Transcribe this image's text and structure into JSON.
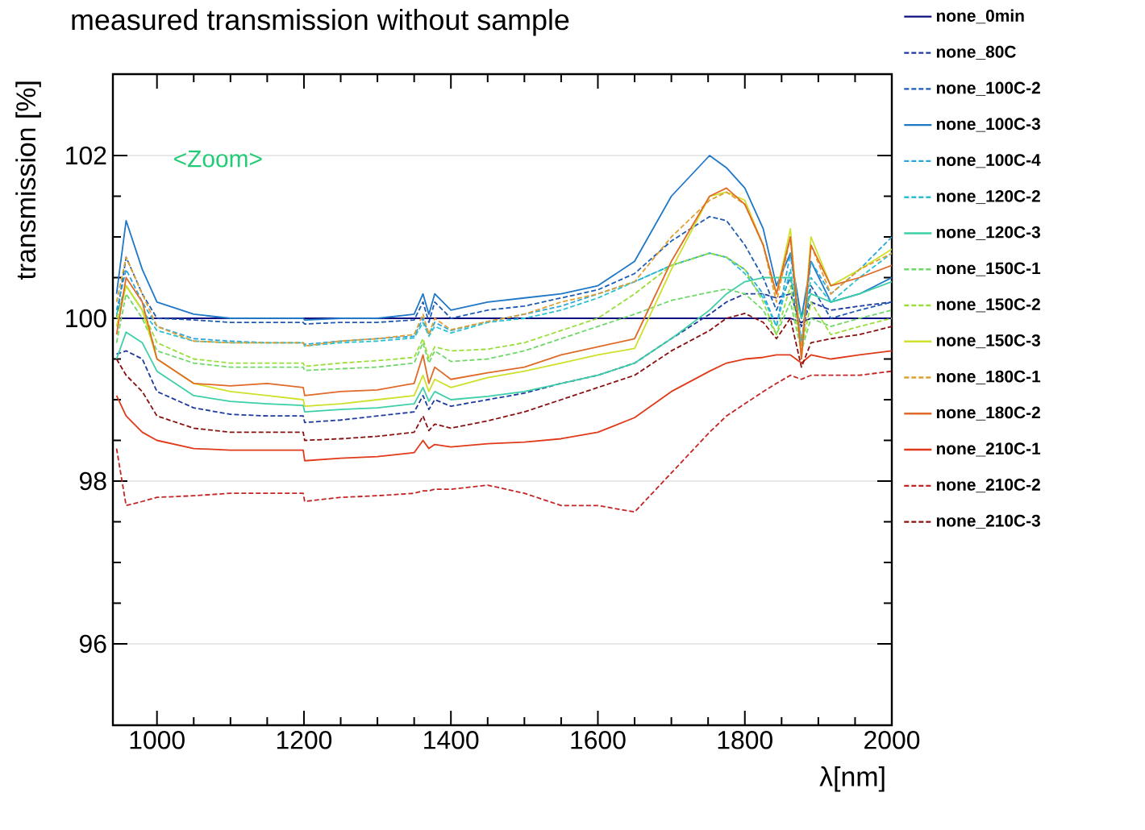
{
  "chart_data": {
    "type": "line",
    "title": "measured transmission without sample",
    "xlabel": "λ[nm]",
    "ylabel": "transmission [%]",
    "annotations": [
      "<Zoom>"
    ],
    "xlim": [
      940,
      2000
    ],
    "ylim": [
      95,
      103
    ],
    "xticks": [
      1000,
      1200,
      1400,
      1600,
      1800,
      2000
    ],
    "yticks": [
      96,
      98,
      100,
      102
    ],
    "grid": "y",
    "legend": "right",
    "marker": "none",
    "x": [
      945,
      958,
      980,
      1000,
      1050,
      1100,
      1150,
      1199,
      1201,
      1250,
      1300,
      1350,
      1362,
      1370,
      1378,
      1400,
      1450,
      1500,
      1550,
      1600,
      1650,
      1700,
      1752,
      1775,
      1800,
      1825,
      1843,
      1862,
      1877,
      1890,
      1917,
      1956,
      2000
    ],
    "series": [
      {
        "name": "none_0min",
        "color": "#0d0d80",
        "line_style": "solid",
        "values": [
          100.0,
          100.0,
          100.0,
          100.0,
          100.0,
          100.0,
          100.0,
          100.0,
          100.0,
          100.0,
          100.0,
          100.0,
          100.0,
          100.0,
          100.0,
          100.0,
          100.0,
          100.0,
          100.0,
          100.0,
          100.0,
          100.0,
          100.0,
          100.0,
          100.0,
          100.0,
          100.0,
          100.0,
          99.95,
          100.0,
          100.0,
          100.0,
          100.0
        ]
      },
      {
        "name": "none_80C",
        "color": "#1f3a9e",
        "line_style": "dashed",
        "values": [
          99.56,
          99.6,
          99.5,
          99.1,
          98.9,
          98.82,
          98.8,
          98.8,
          98.72,
          98.75,
          98.8,
          98.85,
          99.05,
          98.88,
          99.0,
          98.92,
          99.0,
          99.08,
          99.2,
          99.3,
          99.45,
          99.75,
          100.05,
          100.2,
          100.3,
          100.3,
          100.25,
          100.3,
          99.9,
          100.2,
          100.1,
          100.15,
          100.2
        ]
      },
      {
        "name": "none_100C-2",
        "color": "#1d5bb5",
        "line_style": "dashed",
        "values": [
          100.0,
          100.75,
          100.3,
          100.0,
          99.98,
          99.95,
          99.95,
          99.95,
          99.93,
          99.95,
          99.95,
          99.98,
          100.2,
          99.95,
          100.2,
          100.0,
          100.1,
          100.15,
          100.25,
          100.35,
          100.55,
          100.95,
          101.25,
          101.2,
          100.9,
          100.5,
          100.1,
          100.5,
          99.7,
          100.4,
          100.0,
          100.1,
          100.2
        ]
      },
      {
        "name": "none_100C-3",
        "color": "#1f77c8",
        "line_style": "solid",
        "values": [
          100.3,
          101.2,
          100.6,
          100.2,
          100.05,
          100.0,
          100.0,
          100.0,
          99.98,
          100.0,
          100.0,
          100.05,
          100.3,
          100.05,
          100.3,
          100.1,
          100.2,
          100.25,
          100.3,
          100.4,
          100.7,
          101.5,
          102.0,
          101.85,
          101.6,
          101.1,
          100.4,
          100.8,
          100.0,
          100.7,
          100.2,
          100.3,
          100.5
        ]
      },
      {
        "name": "none_100C-4",
        "color": "#2aa6dc",
        "line_style": "dashed",
        "values": [
          100.1,
          100.6,
          100.2,
          99.9,
          99.75,
          99.72,
          99.7,
          99.7,
          99.68,
          99.72,
          99.75,
          99.78,
          100.0,
          99.8,
          99.95,
          99.85,
          99.96,
          100.05,
          100.15,
          100.3,
          100.45,
          100.65,
          100.8,
          100.75,
          100.6,
          100.3,
          99.9,
          100.8,
          99.7,
          100.7,
          100.3,
          100.6,
          101.0
        ]
      },
      {
        "name": "none_120C-2",
        "color": "#2bc0d0",
        "line_style": "dashed",
        "values": [
          100.05,
          100.4,
          100.1,
          99.85,
          99.72,
          99.7,
          99.7,
          99.7,
          99.66,
          99.7,
          99.72,
          99.76,
          99.95,
          99.78,
          99.9,
          99.82,
          99.95,
          100.0,
          100.1,
          100.25,
          100.45,
          100.65,
          100.8,
          100.75,
          100.55,
          100.25,
          99.9,
          100.6,
          99.7,
          100.5,
          100.2,
          100.5,
          100.8
        ]
      },
      {
        "name": "none_120C-3",
        "color": "#3ccfa8",
        "line_style": "solid",
        "values": [
          99.5,
          99.83,
          99.7,
          99.35,
          99.05,
          98.98,
          98.95,
          98.93,
          98.85,
          98.88,
          98.9,
          98.95,
          99.15,
          98.98,
          99.1,
          99.0,
          99.04,
          99.1,
          99.2,
          99.3,
          99.45,
          99.75,
          100.1,
          100.3,
          100.45,
          100.5,
          100.5,
          100.5,
          100.0,
          100.3,
          100.2,
          100.3,
          100.45
        ]
      },
      {
        "name": "none_150C-1",
        "color": "#6fd86a",
        "line_style": "dashed",
        "values": [
          99.7,
          100.3,
          100.0,
          99.6,
          99.45,
          99.4,
          99.4,
          99.4,
          99.36,
          99.38,
          99.4,
          99.45,
          99.7,
          99.45,
          99.6,
          99.47,
          99.5,
          99.6,
          99.75,
          99.9,
          100.05,
          100.22,
          100.32,
          100.36,
          100.3,
          100.1,
          99.8,
          100.2,
          99.6,
          100.0,
          99.9,
          100.0,
          100.1
        ]
      },
      {
        "name": "none_150C-2",
        "color": "#9ade3a",
        "line_style": "dashed",
        "values": [
          100.0,
          100.4,
          100.1,
          99.7,
          99.5,
          99.45,
          99.45,
          99.45,
          99.41,
          99.45,
          99.48,
          99.52,
          99.75,
          99.5,
          99.65,
          99.6,
          99.62,
          99.7,
          99.85,
          100.0,
          100.3,
          100.65,
          100.8,
          100.75,
          100.6,
          100.2,
          99.8,
          100.4,
          99.6,
          100.2,
          99.8,
          99.9,
          100.0
        ]
      },
      {
        "name": "none_150C-3",
        "color": "#cfe02a",
        "line_style": "solid",
        "values": [
          99.9,
          100.4,
          100.1,
          99.5,
          99.2,
          99.1,
          99.05,
          99.0,
          98.92,
          98.95,
          99.0,
          99.05,
          99.3,
          99.1,
          99.25,
          99.15,
          99.27,
          99.35,
          99.45,
          99.55,
          99.63,
          100.6,
          101.5,
          101.55,
          101.45,
          100.9,
          100.3,
          101.1,
          99.5,
          101.0,
          100.4,
          100.6,
          100.85
        ]
      },
      {
        "name": "none_180C-1",
        "color": "#e0a030",
        "line_style": "dashed",
        "values": [
          100.2,
          100.75,
          100.3,
          99.9,
          99.72,
          99.7,
          99.7,
          99.7,
          99.66,
          99.72,
          99.75,
          99.8,
          100.05,
          99.8,
          100.0,
          99.86,
          99.96,
          100.05,
          100.2,
          100.3,
          100.45,
          101.0,
          101.45,
          101.55,
          101.4,
          100.9,
          100.2,
          101.0,
          99.6,
          100.9,
          100.3,
          100.6,
          100.8
        ]
      },
      {
        "name": "none_180C-2",
        "color": "#e06a28",
        "line_style": "solid",
        "values": [
          99.8,
          100.5,
          100.2,
          99.5,
          99.2,
          99.17,
          99.2,
          99.15,
          99.05,
          99.1,
          99.12,
          99.2,
          99.55,
          99.2,
          99.4,
          99.25,
          99.33,
          99.4,
          99.55,
          99.65,
          99.75,
          100.7,
          101.5,
          101.6,
          101.4,
          100.9,
          100.3,
          101.0,
          99.5,
          100.9,
          100.4,
          100.5,
          100.65
        ]
      },
      {
        "name": "none_210C-1",
        "color": "#e03a1a",
        "line_style": "solid",
        "values": [
          99.05,
          98.8,
          98.6,
          98.5,
          98.4,
          98.38,
          98.38,
          98.38,
          98.25,
          98.28,
          98.3,
          98.35,
          98.5,
          98.4,
          98.45,
          98.42,
          98.46,
          98.48,
          98.52,
          98.6,
          98.78,
          99.1,
          99.35,
          99.45,
          99.5,
          99.52,
          99.55,
          99.55,
          99.45,
          99.55,
          99.5,
          99.55,
          99.6
        ]
      },
      {
        "name": "none_210C-2",
        "color": "#c42424",
        "line_style": "dashed",
        "values": [
          98.4,
          97.7,
          97.75,
          97.8,
          97.82,
          97.85,
          97.85,
          97.85,
          97.75,
          97.8,
          97.82,
          97.85,
          97.88,
          97.88,
          97.9,
          97.9,
          97.95,
          97.85,
          97.7,
          97.7,
          97.62,
          98.1,
          98.6,
          98.8,
          98.95,
          99.1,
          99.2,
          99.3,
          99.25,
          99.3,
          99.3,
          99.3,
          99.35
        ]
      },
      {
        "name": "none_210C-3",
        "color": "#8a1010",
        "line_style": "dashed",
        "values": [
          99.5,
          99.3,
          99.1,
          98.8,
          98.65,
          98.6,
          98.6,
          98.6,
          98.5,
          98.52,
          98.55,
          98.6,
          98.8,
          98.62,
          98.7,
          98.65,
          98.74,
          98.85,
          99.0,
          99.15,
          99.3,
          99.6,
          99.85,
          100.0,
          100.06,
          99.95,
          99.75,
          100.0,
          99.4,
          99.7,
          99.75,
          99.8,
          99.9
        ]
      }
    ]
  }
}
